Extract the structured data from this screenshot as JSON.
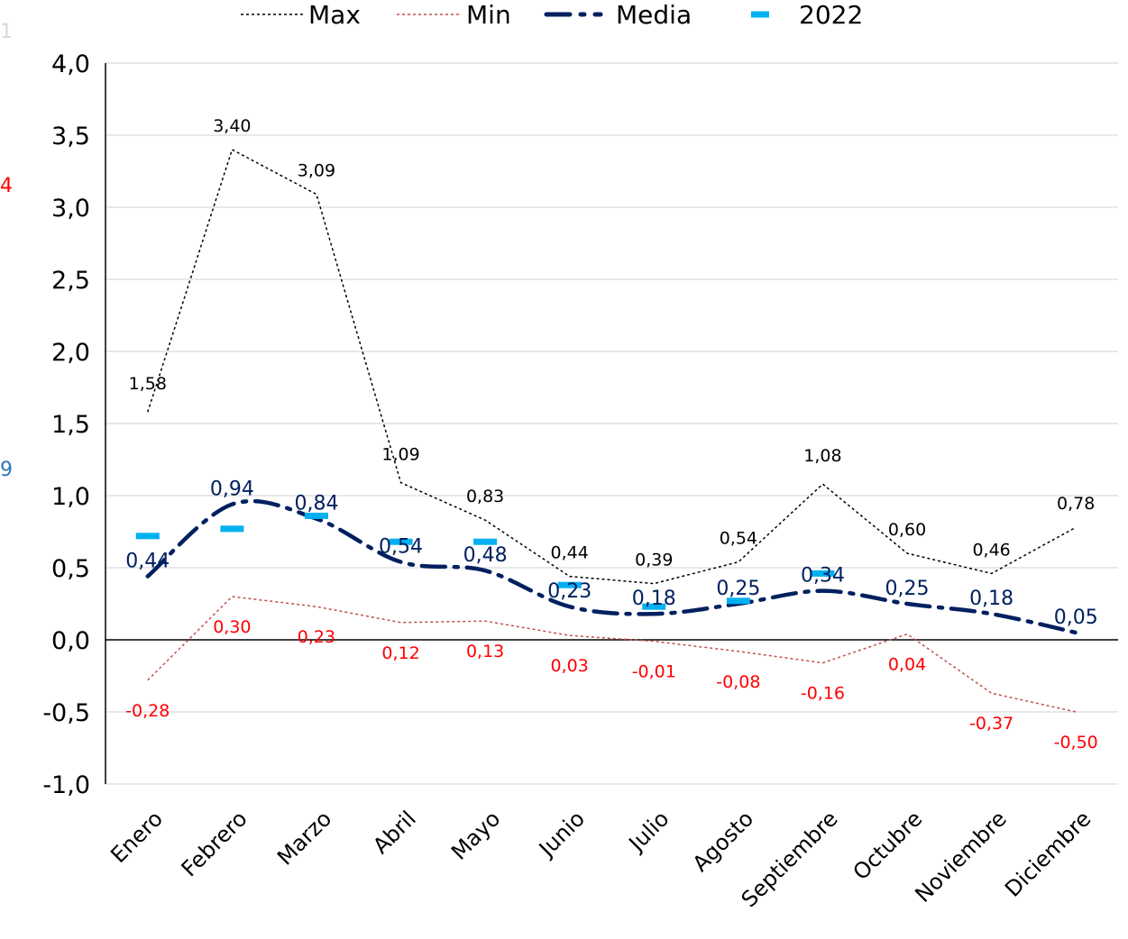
{
  "edge_fragments": [
    {
      "text": "1",
      "color": "#d9d9d9"
    },
    {
      "text": "4",
      "color": "#ff0000"
    },
    {
      "text": "9",
      "color": "#2e75b6"
    }
  ],
  "chart_data": {
    "type": "line",
    "categories": [
      "Enero",
      "Febrero",
      "Marzo",
      "Abril",
      "Mayo",
      "Junio",
      "Julio",
      "Agosto",
      "Septiembre",
      "Octubre",
      "Noviembre",
      "Diciembre"
    ],
    "ylim": [
      -1.0,
      4.0
    ],
    "yticks": [
      -1.0,
      -0.5,
      0.0,
      0.5,
      1.0,
      1.5,
      2.0,
      2.5,
      3.0,
      3.5,
      4.0
    ],
    "ytick_labels": [
      "-1,0",
      "-0,5",
      "0,0",
      "0,5",
      "1,0",
      "1,5",
      "2,0",
      "2,5",
      "3,0",
      "3,5",
      "4,0"
    ],
    "grid": true,
    "legend_position": "top",
    "series": [
      {
        "name": "Max",
        "style": "dotted",
        "color": "#000000",
        "values": [
          1.58,
          3.4,
          3.09,
          1.09,
          0.83,
          0.44,
          0.39,
          0.54,
          1.08,
          0.6,
          0.46,
          0.78
        ],
        "labels": [
          "1,58",
          "3,40",
          "3,09",
          "1,09",
          "0,83",
          "0,44",
          "0,39",
          "0,54",
          "1,08",
          "0,60",
          "0,46",
          "0,78"
        ]
      },
      {
        "name": "Min",
        "style": "dotted",
        "color": "#c0504d",
        "label_color": "#ff0000",
        "values": [
          -0.28,
          0.3,
          0.23,
          0.12,
          0.13,
          0.03,
          -0.01,
          -0.08,
          -0.16,
          0.04,
          -0.37,
          -0.5
        ],
        "labels": [
          "-0,28",
          "0,30",
          "0,23",
          "0,12",
          "0,13",
          "0,03",
          "-0,01",
          "-0,08",
          "-0,16",
          "0,04",
          "-0,37",
          "-0,50"
        ]
      },
      {
        "name": "Media",
        "style": "dash-dot",
        "color": "#002060",
        "values": [
          0.44,
          0.94,
          0.84,
          0.54,
          0.48,
          0.23,
          0.18,
          0.25,
          0.34,
          0.25,
          0.18,
          0.05
        ],
        "labels": [
          "0,44",
          "0,94",
          "0,84",
          "0,54",
          "0,48",
          "0,23",
          "0,18",
          "0,25",
          "0,34",
          "0,25",
          "0,18",
          "0,05"
        ]
      },
      {
        "name": "2022",
        "style": "marker-dash",
        "color": "#00b0f0",
        "values": [
          0.72,
          0.77,
          0.86,
          0.68,
          0.68,
          0.38,
          0.23,
          0.27,
          0.46,
          null,
          null,
          null
        ]
      }
    ]
  }
}
